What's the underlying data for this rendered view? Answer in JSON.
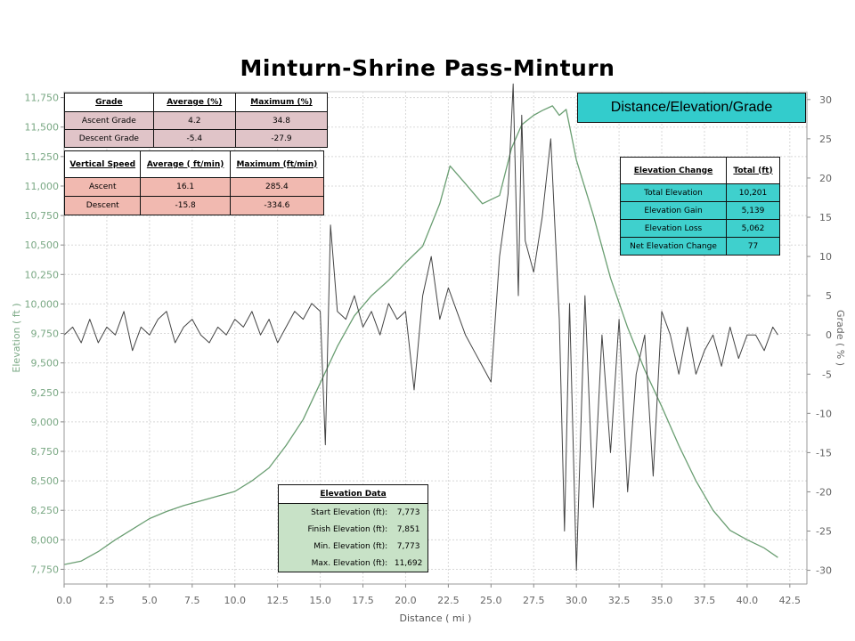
{
  "page_title": "Minturn-Shrine Pass-Minturn",
  "legend_box": "Distance/Elevation/Grade",
  "chart_data": {
    "type": "line",
    "title": "Minturn-Shrine Pass-Minturn",
    "xlabel": "Distance ( mi )",
    "ylabel_left": "Elevation ( ft )",
    "ylabel_right": "Grade ( % )",
    "xlim": [
      0,
      43.5
    ],
    "ylim_left": [
      7625,
      11800
    ],
    "ylim_right": [
      -31.75,
      31.0
    ],
    "x_ticks": [
      "0.0",
      "2.5",
      "5.0",
      "7.5",
      "10.0",
      "12.5",
      "15.0",
      "17.5",
      "20.0",
      "22.5",
      "25.0",
      "27.5",
      "30.0",
      "32.5",
      "35.0",
      "37.5",
      "40.0",
      "42.5"
    ],
    "y_left_ticks": [
      "7,750",
      "8,000",
      "8,250",
      "8,500",
      "8,750",
      "9,000",
      "9,250",
      "9,500",
      "9,750",
      "10,000",
      "10,250",
      "10,500",
      "10,750",
      "11,000",
      "11,250",
      "11,500",
      "11,750"
    ],
    "y_right_ticks": [
      "-30",
      "-25",
      "-20",
      "-15",
      "-10",
      "-5",
      "0",
      "5",
      "10",
      "15",
      "20",
      "25",
      "30"
    ],
    "grid": true,
    "colors": {
      "elevation": "#6a9e72",
      "grade": "#444444",
      "grid": "#d8d8d8",
      "left_axis": "#7aa884"
    },
    "series": [
      {
        "name": "Elevation",
        "axis": "left",
        "x": [
          0,
          1,
          2,
          3,
          4,
          5,
          6,
          7,
          8,
          9,
          10,
          11,
          12,
          13,
          14,
          15,
          16,
          17,
          18,
          19,
          20,
          21,
          22,
          22.6,
          23.5,
          24.5,
          25.5,
          26.2,
          26.8,
          27.5,
          28.0,
          28.6,
          29.0,
          29.4,
          30,
          31,
          32,
          33,
          34,
          35,
          36,
          37,
          38,
          39,
          40,
          41,
          41.8
        ],
        "y": [
          7790,
          7820,
          7900,
          8000,
          8090,
          8180,
          8240,
          8290,
          8330,
          8370,
          8410,
          8500,
          8610,
          8800,
          9020,
          9330,
          9640,
          9900,
          10070,
          10200,
          10350,
          10490,
          10850,
          11170,
          11020,
          10850,
          10920,
          11320,
          11520,
          11600,
          11640,
          11680,
          11600,
          11650,
          11220,
          10750,
          10220,
          9800,
          9440,
          9130,
          8800,
          8500,
          8250,
          8080,
          8000,
          7930,
          7850
        ]
      },
      {
        "name": "Grade",
        "axis": "right",
        "x": [
          0,
          0.5,
          1,
          1.5,
          2,
          2.5,
          3,
          3.5,
          4,
          4.5,
          5,
          5.5,
          6,
          6.5,
          7,
          7.5,
          8,
          8.5,
          9,
          9.5,
          10,
          10.5,
          11,
          11.5,
          12,
          12.5,
          13,
          13.5,
          14,
          14.5,
          15,
          15.3,
          15.6,
          16,
          16.5,
          17,
          17.5,
          18,
          18.5,
          19,
          19.5,
          20,
          20.5,
          21,
          21.5,
          22,
          22.5,
          23,
          23.5,
          24,
          24.5,
          25,
          25.5,
          26,
          26.3,
          26.6,
          26.8,
          27,
          27.5,
          28,
          28.5,
          29,
          29.3,
          29.6,
          30,
          30.5,
          31,
          31.5,
          32,
          32.5,
          33,
          33.5,
          34,
          34.5,
          35,
          35.5,
          36,
          36.5,
          37,
          37.5,
          38,
          38.5,
          39,
          39.5,
          40,
          40.5,
          41,
          41.5,
          41.8
        ],
        "y": [
          0,
          1,
          -1,
          2,
          -1,
          1,
          0,
          3,
          -2,
          1,
          0,
          2,
          3,
          -1,
          1,
          2,
          0,
          -1,
          1,
          0,
          2,
          1,
          3,
          0,
          2,
          -1,
          1,
          3,
          2,
          4,
          3,
          -14,
          14,
          3,
          2,
          5,
          1,
          3,
          0,
          4,
          2,
          3,
          -7,
          5,
          10,
          2,
          6,
          3,
          0,
          -2,
          -4,
          -6,
          10,
          18,
          32,
          5,
          28,
          12,
          8,
          15,
          25,
          2,
          -25,
          4,
          -30,
          5,
          -22,
          0,
          -15,
          2,
          -20,
          -5,
          0,
          -18,
          3,
          0,
          -5,
          1,
          -5,
          -2,
          0,
          -4,
          1,
          -3,
          0,
          0,
          -2,
          1,
          0
        ]
      }
    ]
  },
  "grade_table": {
    "headers": [
      "Grade",
      "Average (%)",
      "Maximum (%)"
    ],
    "rows": [
      [
        "Ascent Grade",
        "4.2",
        "34.8"
      ],
      [
        "Descent Grade",
        "-5.4",
        "-27.9"
      ]
    ]
  },
  "vertical_speed_table": {
    "headers": [
      "Vertical Speed",
      "Average ( ft/min)",
      "Maximum (ft/min)"
    ],
    "rows": [
      [
        "Ascent",
        "16.1",
        "285.4"
      ],
      [
        "Descent",
        "-15.8",
        "-334.6"
      ]
    ]
  },
  "elevation_change_table": {
    "headers": [
      "Elevation Change",
      "Total (ft)"
    ],
    "rows": [
      [
        "Total Elevation",
        "10,201"
      ],
      [
        "Elevation Gain",
        "5,139"
      ],
      [
        "Elevation Loss",
        "5,062"
      ],
      [
        "Net Elevation Change",
        "77"
      ]
    ]
  },
  "elevation_data_table": {
    "header": "Elevation Data",
    "rows": [
      [
        "Start Elevation (ft):",
        "7,773"
      ],
      [
        "Finish Elevation (ft):",
        "7,851"
      ],
      [
        "Min. Elevation (ft):",
        "7,773"
      ],
      [
        "Max. Elevation (ft):",
        "11,692"
      ]
    ]
  }
}
